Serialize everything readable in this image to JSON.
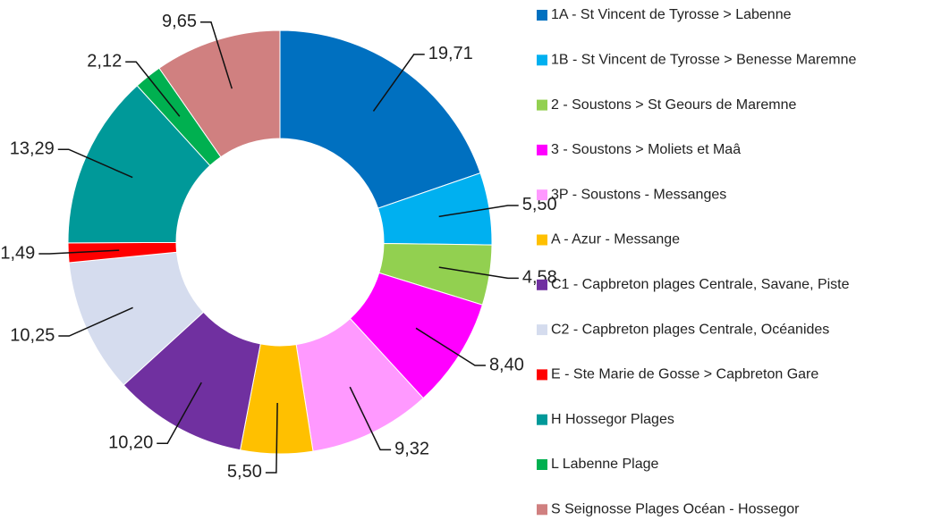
{
  "chart_data": {
    "type": "donut",
    "categories": [
      "1A - St Vincent de Tyrosse > Labenne",
      "1B - St Vincent de Tyrosse > Benesse Maremne",
      "2 - Soustons > St Geours de Maremne",
      "3 - Soustons > Moliets et Maâ",
      "3P - Soustons - Messanges",
      "A -  Azur - Messange",
      "C1 - Capbreton plages Centrale, Savane, Piste",
      "C2 - Capbreton plages Centrale, Océanides",
      "E - Ste Marie de Gosse > Capbreton Gare",
      "H Hossegor Plages",
      "L Labenne Plage",
      "S Seignosse Plages Océan - Hossegor"
    ],
    "values": [
      19.71,
      5.5,
      4.58,
      8.4,
      9.32,
      5.5,
      10.2,
      10.25,
      1.49,
      13.29,
      2.12,
      9.65
    ],
    "value_labels": [
      "19,71",
      "5,50",
      "4,58",
      "8,40",
      "9,32",
      "5,50",
      "10,20",
      "10,25",
      "1,49",
      "13,29",
      "2,12",
      "9,65"
    ],
    "colors": [
      "#0070c0",
      "#00b0f0",
      "#92d050",
      "#ff00ff",
      "#ff99ff",
      "#ffc000",
      "#7030a0",
      "#d5dcee",
      "#ff0000",
      "#009999",
      "#00b050",
      "#d08080"
    ],
    "legend": "right"
  }
}
